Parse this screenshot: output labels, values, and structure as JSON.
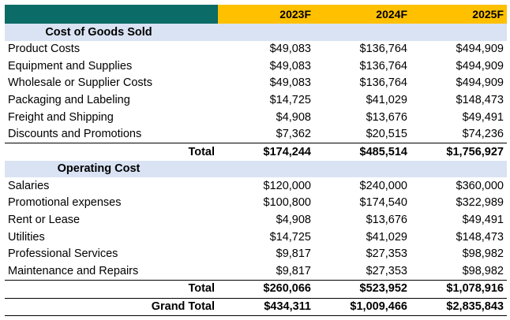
{
  "header": {
    "years": [
      "2023F",
      "2024F",
      "2025F"
    ]
  },
  "cogs": {
    "title": "Cost of Goods Sold",
    "rows": [
      {
        "label": "Product Costs",
        "values": [
          "$49,083",
          "$136,764",
          "$494,909"
        ]
      },
      {
        "label": "Equipment and Supplies",
        "values": [
          "$49,083",
          "$136,764",
          "$494,909"
        ]
      },
      {
        "label": "Wholesale or Supplier Costs",
        "values": [
          "$49,083",
          "$136,764",
          "$494,909"
        ]
      },
      {
        "label": "Packaging and Labeling",
        "values": [
          "$14,725",
          "$41,029",
          "$148,473"
        ]
      },
      {
        "label": "Freight and Shipping",
        "values": [
          "$4,908",
          "$13,676",
          "$49,491"
        ]
      },
      {
        "label": "Discounts and Promotions",
        "values": [
          "$7,362",
          "$20,515",
          "$74,236"
        ]
      }
    ],
    "total": {
      "label": "Total",
      "values": [
        "$174,244",
        "$485,514",
        "$1,756,927"
      ]
    }
  },
  "opex": {
    "title": "Operating Cost",
    "rows": [
      {
        "label": "Salaries",
        "values": [
          "$120,000",
          "$240,000",
          "$360,000"
        ]
      },
      {
        "label": "Promotional expenses",
        "values": [
          "$100,800",
          "$174,540",
          "$322,989"
        ]
      },
      {
        "label": "Rent or Lease",
        "values": [
          "$4,908",
          "$13,676",
          "$49,491"
        ]
      },
      {
        "label": "Utilities",
        "values": [
          "$14,725",
          "$41,029",
          "$148,473"
        ]
      },
      {
        "label": "Professional Services",
        "values": [
          "$9,817",
          "$27,353",
          "$98,982"
        ]
      },
      {
        "label": "Maintenance and Repairs",
        "values": [
          "$9,817",
          "$27,353",
          "$98,982"
        ]
      }
    ],
    "total": {
      "label": "Total",
      "values": [
        "$260,066",
        "$523,952",
        "$1,078,916"
      ]
    }
  },
  "grand_total": {
    "label": "Grand Total",
    "values": [
      "$434,311",
      "$1,009,466",
      "$2,835,843"
    ]
  },
  "colors": {
    "header_dark": "#0b6b66",
    "header_year": "#ffc000",
    "section_band": "#dae3f3"
  }
}
